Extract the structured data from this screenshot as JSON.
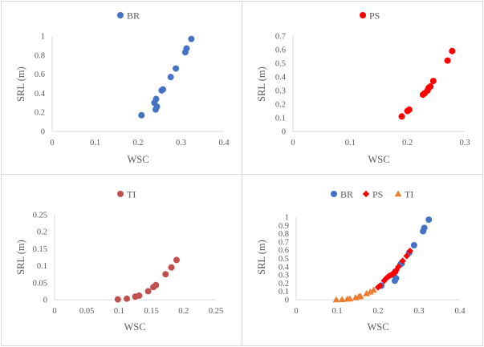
{
  "chart_data": [
    {
      "id": "br",
      "type": "scatter",
      "title": "",
      "xlabel": "WSC",
      "ylabel": "SRL (m)",
      "xlim": [
        0,
        0.4
      ],
      "ylim": [
        0,
        1
      ],
      "xticks": [
        "0",
        "0.1",
        "0.2",
        "0.3",
        "0.4"
      ],
      "yticks": [
        "0",
        "0.2",
        "0.4",
        "0.6",
        "0.8",
        "1"
      ],
      "legend": "top",
      "series": [
        {
          "name": "BR",
          "color": "#4472c4",
          "marker": "circle",
          "x": [
            0.208,
            0.238,
            0.242,
            0.241,
            0.244,
            0.255,
            0.258,
            0.276,
            0.288,
            0.31,
            0.313,
            0.324
          ],
          "y": [
            0.17,
            0.3,
            0.34,
            0.23,
            0.26,
            0.43,
            0.44,
            0.57,
            0.66,
            0.83,
            0.87,
            0.97
          ]
        }
      ]
    },
    {
      "id": "ps",
      "type": "scatter",
      "title": "",
      "xlabel": "WSC",
      "ylabel": "SRL (m)",
      "xlim": [
        0,
        0.3
      ],
      "ylim": [
        0,
        0.7
      ],
      "xticks": [
        "0",
        "0.1",
        "0.2",
        "0.3"
      ],
      "yticks": [
        "0",
        "0.1",
        "0.2",
        "0.3",
        "0.4",
        "0.5",
        "0.6",
        "0.7"
      ],
      "legend": "top",
      "series": [
        {
          "name": "PS",
          "color": "#ff0000",
          "marker": "circle",
          "x": [
            0.19,
            0.2,
            0.203,
            0.227,
            0.23,
            0.235,
            0.237,
            0.24,
            0.245,
            0.27,
            0.278
          ],
          "y": [
            0.11,
            0.15,
            0.16,
            0.27,
            0.28,
            0.3,
            0.32,
            0.33,
            0.37,
            0.52,
            0.59
          ]
        }
      ]
    },
    {
      "id": "ti",
      "type": "scatter",
      "title": "",
      "xlabel": "WSC",
      "ylabel": "SRL (m)",
      "xlim": [
        0,
        0.25
      ],
      "ylim": [
        0,
        0.25
      ],
      "xticks": [
        "0",
        "0.05",
        "0.1",
        "0.15",
        "0.2",
        "0.25"
      ],
      "yticks": [
        "0",
        "0.05",
        "0.1",
        "0.15",
        "0.2",
        "0.25"
      ],
      "legend": "top",
      "series": [
        {
          "name": "TI",
          "color": "#c0504d",
          "marker": "circle",
          "x": [
            0.098,
            0.112,
            0.125,
            0.131,
            0.145,
            0.153,
            0.157,
            0.172,
            0.181,
            0.189
          ],
          "y": [
            0.001,
            0.003,
            0.009,
            0.012,
            0.025,
            0.037,
            0.043,
            0.075,
            0.095,
            0.117
          ]
        }
      ]
    },
    {
      "id": "combined",
      "type": "scatter",
      "title": "",
      "xlabel": "WSC",
      "ylabel": "SRL (m)",
      "xlim": [
        0,
        0.4
      ],
      "ylim": [
        0,
        1
      ],
      "xticks": [
        "0",
        "0.1",
        "0.2",
        "0.3",
        "0.4"
      ],
      "yticks": [
        "0",
        "0.1",
        "0.2",
        "0.3",
        "0.4",
        "0.5",
        "0.6",
        "0.7",
        "0.8",
        "0.9",
        "1"
      ],
      "legend": "top",
      "series": [
        {
          "name": "BR",
          "color": "#4472c4",
          "marker": "circle",
          "x": [
            0.208,
            0.238,
            0.242,
            0.241,
            0.244,
            0.255,
            0.258,
            0.276,
            0.288,
            0.31,
            0.313,
            0.324
          ],
          "y": [
            0.17,
            0.3,
            0.34,
            0.23,
            0.26,
            0.43,
            0.44,
            0.57,
            0.66,
            0.83,
            0.87,
            0.97
          ]
        },
        {
          "name": "PS",
          "color": "#ff0000",
          "marker": "diamond",
          "x": [
            0.2,
            0.205,
            0.215,
            0.22,
            0.225,
            0.228,
            0.232,
            0.235,
            0.238,
            0.242,
            0.245,
            0.25,
            0.26,
            0.27,
            0.278
          ],
          "y": [
            0.15,
            0.17,
            0.23,
            0.26,
            0.28,
            0.29,
            0.3,
            0.31,
            0.32,
            0.33,
            0.36,
            0.4,
            0.47,
            0.53,
            0.59
          ]
        },
        {
          "name": "TI",
          "color": "#ed7d31",
          "marker": "triangle",
          "x": [
            0.098,
            0.112,
            0.125,
            0.131,
            0.145,
            0.153,
            0.157,
            0.172,
            0.181,
            0.189
          ],
          "y": [
            0.001,
            0.003,
            0.009,
            0.012,
            0.025,
            0.037,
            0.043,
            0.075,
            0.095,
            0.117
          ]
        }
      ]
    }
  ]
}
